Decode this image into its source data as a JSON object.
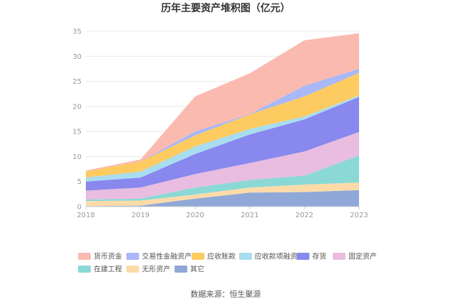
{
  "chart_data": {
    "type": "area",
    "stacked": true,
    "title": "历年主要资产堆积图（亿元）",
    "xlabel": "",
    "ylabel": "",
    "x": [
      "2018",
      "2019",
      "2020",
      "2021",
      "2022",
      "2023"
    ],
    "ylim": [
      0,
      35
    ],
    "yticks": [
      0,
      5,
      10,
      15,
      20,
      25,
      30,
      35
    ],
    "grid": true,
    "legend_position": "bottom",
    "series": [
      {
        "name": "其它",
        "color": "#8fa8d8",
        "values": [
          0.1,
          0.2,
          1.6,
          2.8,
          2.9,
          3.3
        ]
      },
      {
        "name": "无形资产",
        "color": "#fddba8",
        "values": [
          1.0,
          1.0,
          0.8,
          1.0,
          1.5,
          1.5
        ]
      },
      {
        "name": "在建工程",
        "color": "#8ad9d6",
        "values": [
          0.3,
          0.4,
          1.4,
          1.5,
          1.8,
          5.4
        ]
      },
      {
        "name": "固定资产",
        "color": "#e8bde0",
        "values": [
          1.8,
          2.2,
          2.7,
          3.4,
          4.8,
          4.7
        ]
      },
      {
        "name": "存货",
        "color": "#8888ee",
        "values": [
          1.8,
          2.0,
          4.0,
          5.7,
          6.4,
          7.0
        ]
      },
      {
        "name": "应收款项融资",
        "color": "#a8ddf0",
        "values": [
          0.8,
          1.2,
          1.5,
          1.1,
          0.6,
          0.3
        ]
      },
      {
        "name": "应收账款",
        "color": "#fdcb60",
        "values": [
          1.2,
          2.0,
          2.2,
          2.9,
          4.0,
          4.5
        ]
      },
      {
        "name": "交易性金融资产",
        "color": "#a8b8f8",
        "values": [
          0.0,
          0.0,
          0.8,
          0.1,
          2.1,
          0.8
        ]
      },
      {
        "name": "货币资金",
        "color": "#fbbab0",
        "values": [
          0.2,
          0.4,
          7.0,
          8.1,
          9.1,
          7.1
        ]
      }
    ],
    "legend_order": [
      "货币资金",
      "交易性金融资产",
      "应收账款",
      "应收款项融资",
      "存货",
      "固定资产",
      "在建工程",
      "无形资产",
      "其它"
    ]
  },
  "footer": {
    "source": "数据来源：恒生聚源"
  }
}
